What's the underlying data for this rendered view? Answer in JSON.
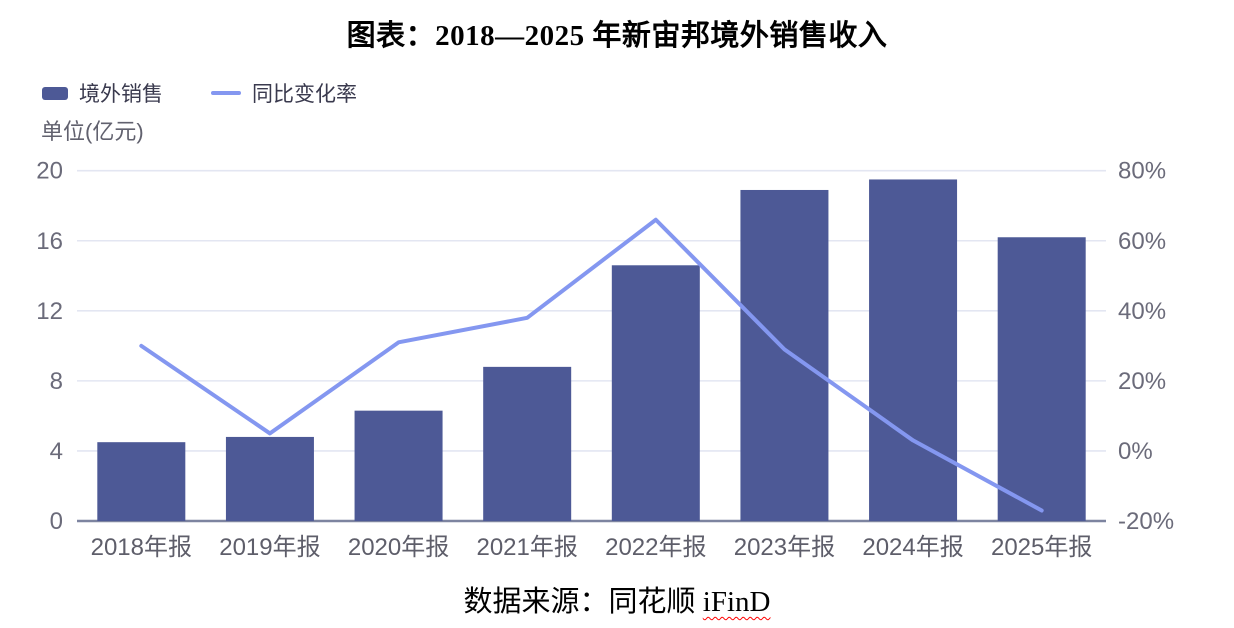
{
  "title": "图表：2018—2025 年新宙邦境外销售收入",
  "unit_label": "单位(亿元)",
  "source": {
    "prefix": "数据来源：同花顺 ",
    "highlight": "iFinD"
  },
  "legend": {
    "bar_label": "境外销售",
    "line_label": "同比变化率"
  },
  "colors": {
    "bar": "#4D5996",
    "line": "#8497F0",
    "gridline": "#E3E6F2",
    "axis_line": "#7D84A0",
    "tick_text": "#6B6B7A",
    "xlabel_text": "#5E5E6A"
  },
  "chart_data": {
    "type": "bar",
    "subtype": "combo-bar-line-dual-axis",
    "title": "图表：2018—2025 年新宙邦境外销售收入",
    "categories": [
      "2018年报",
      "2019年报",
      "2020年报",
      "2021年报",
      "2022年报",
      "2023年报",
      "2024年报",
      "2025年报"
    ],
    "series": [
      {
        "name": "境外销售",
        "type": "bar",
        "axis": "left",
        "unit": "亿元",
        "values": [
          4.5,
          4.8,
          6.3,
          8.8,
          14.6,
          18.9,
          19.5,
          16.2
        ],
        "color": "#4D5996"
      },
      {
        "name": "同比变化率",
        "type": "line",
        "axis": "right",
        "unit": "%",
        "values": [
          30,
          5,
          31,
          38,
          66,
          29,
          3,
          -17
        ],
        "color": "#8497F0"
      }
    ],
    "left_axis": {
      "label": "单位(亿元)",
      "min": 0,
      "max": 20,
      "ticks": [
        0,
        4,
        8,
        12,
        16,
        20
      ]
    },
    "right_axis": {
      "min": -20,
      "max": 80,
      "ticks": [
        -20,
        0,
        20,
        40,
        60,
        80
      ],
      "tick_suffix": "%"
    },
    "grid": true,
    "legend_position": "top-left",
    "source_note": "数据来源：同花顺 iFinD"
  }
}
